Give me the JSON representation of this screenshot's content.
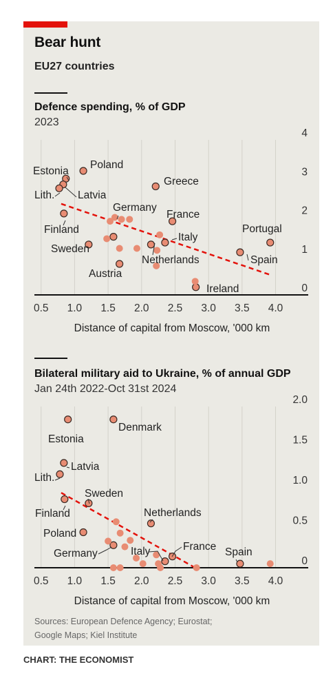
{
  "header": {
    "title": "Bear hunt",
    "subtitle": "EU27 countries"
  },
  "charts": [
    {
      "title": "Defence spending, % of GDP",
      "subtitle": "2023",
      "xlabel": "Distance of capital from Moscow, '000 km"
    },
    {
      "title": "Bilateral military aid to Ukraine, % of annual GDP",
      "subtitle": "Jan 24th 2022-Oct 31st 2024",
      "xlabel": "Distance of capital from Moscow, '000 km"
    }
  ],
  "footer": {
    "sources_line1": "Sources: European Defence Agency; Eurostat;",
    "sources_line2": "Google Maps; Kiel Institute",
    "credit": "CHART: THE ECONOMIST"
  },
  "colors": {
    "background": "#ebeae4",
    "marker_fill": "#e88c73",
    "marker_stroke": "#3a2a24",
    "trend": "#e3120b",
    "brand": "#e3120b"
  },
  "chart_data": [
    {
      "type": "scatter",
      "title": "Defence spending, % of GDP",
      "subtitle": "2023",
      "xlabel": "Distance of capital from Moscow, '000 km",
      "ylabel": "",
      "xlim": [
        0.4,
        4.2
      ],
      "ylim": [
        0,
        4
      ],
      "x_ticks": [
        "0.5",
        "1.0",
        "1.5",
        "2.0",
        "2.5",
        "3.0",
        "3.5",
        "4.0"
      ],
      "y_ticks": [
        "0",
        "1",
        "2",
        "3",
        "4"
      ],
      "grid": "vertical",
      "trendline": [
        [
          0.8,
          2.35
        ],
        [
          3.95,
          0.5
        ]
      ],
      "points": [
        {
          "label": "Estonia",
          "x": 0.87,
          "y": 3.0,
          "outlined": true
        },
        {
          "label": "Latvia",
          "x": 0.83,
          "y": 2.85,
          "outlined": true
        },
        {
          "label": "Lith.",
          "x": 0.77,
          "y": 2.75,
          "outlined": true
        },
        {
          "label": "Poland",
          "x": 1.13,
          "y": 3.2,
          "outlined": true
        },
        {
          "label": "Finland",
          "x": 0.84,
          "y": 2.1,
          "outlined": true
        },
        {
          "label": "Sweden",
          "x": 1.21,
          "y": 1.3,
          "outlined": true
        },
        {
          "label": "Germany",
          "x": 1.58,
          "y": 1.5,
          "outlined": true
        },
        {
          "label": "Greece",
          "x": 2.21,
          "y": 2.8,
          "outlined": true
        },
        {
          "label": "France",
          "x": 2.46,
          "y": 1.9,
          "outlined": true
        },
        {
          "label": "Italy",
          "x": 2.35,
          "y": 1.35,
          "outlined": true
        },
        {
          "label": "Netherlands",
          "x": 2.14,
          "y": 1.3,
          "outlined": true
        },
        {
          "label": "Austria",
          "x": 1.67,
          "y": 0.8,
          "outlined": true
        },
        {
          "label": "Portugal",
          "x": 3.92,
          "y": 1.35,
          "outlined": true
        },
        {
          "label": "Spain",
          "x": 3.47,
          "y": 1.1,
          "outlined": true
        },
        {
          "label": "Ireland",
          "x": 2.81,
          "y": 0.2,
          "outlined": true
        },
        {
          "label": "",
          "x": 1.48,
          "y": 1.45,
          "outlined": false
        },
        {
          "label": "",
          "x": 1.53,
          "y": 1.9,
          "outlined": false
        },
        {
          "label": "",
          "x": 1.6,
          "y": 2.0,
          "outlined": false
        },
        {
          "label": "",
          "x": 1.7,
          "y": 1.95,
          "outlined": false
        },
        {
          "label": "",
          "x": 1.82,
          "y": 1.95,
          "outlined": false
        },
        {
          "label": "",
          "x": 1.67,
          "y": 1.2,
          "outlined": false
        },
        {
          "label": "",
          "x": 1.93,
          "y": 1.2,
          "outlined": false
        },
        {
          "label": "",
          "x": 2.27,
          "y": 1.55,
          "outlined": false
        },
        {
          "label": "",
          "x": 2.23,
          "y": 1.15,
          "outlined": false
        },
        {
          "label": "",
          "x": 2.22,
          "y": 0.75,
          "outlined": false
        },
        {
          "label": "",
          "x": 2.8,
          "y": 0.35,
          "outlined": false
        }
      ]
    },
    {
      "type": "scatter",
      "title": "Bilateral military aid to Ukraine, % of annual GDP",
      "subtitle": "Jan 24th 2022-Oct 31st 2024",
      "xlabel": "Distance of capital from Moscow, '000 km",
      "ylabel": "",
      "xlim": [
        0.4,
        4.2
      ],
      "ylim": [
        0,
        2.0
      ],
      "x_ticks": [
        "0.5",
        "1.0",
        "1.5",
        "2.0",
        "2.5",
        "3.0",
        "3.5",
        "4.0"
      ],
      "y_ticks": [
        "0",
        "0.5",
        "1.0",
        "1.5",
        "2.0"
      ],
      "grid": "vertical",
      "trendline": [
        [
          0.8,
          0.93
        ],
        [
          2.8,
          0.0
        ]
      ],
      "points": [
        {
          "label": "Estonia",
          "x": 0.9,
          "y": 1.84,
          "outlined": true
        },
        {
          "label": "Denmark",
          "x": 1.58,
          "y": 1.84,
          "outlined": true
        },
        {
          "label": "Latvia",
          "x": 0.84,
          "y": 1.3,
          "outlined": true
        },
        {
          "label": "Lith.",
          "x": 0.78,
          "y": 1.16,
          "outlined": true
        },
        {
          "label": "Sweden",
          "x": 1.21,
          "y": 0.8,
          "outlined": true
        },
        {
          "label": "Finland",
          "x": 0.85,
          "y": 0.85,
          "outlined": true
        },
        {
          "label": "Netherlands",
          "x": 2.14,
          "y": 0.55,
          "outlined": true
        },
        {
          "label": "Poland",
          "x": 1.13,
          "y": 0.44,
          "outlined": true
        },
        {
          "label": "Germany",
          "x": 1.58,
          "y": 0.28,
          "outlined": true
        },
        {
          "label": "Italy",
          "x": 2.35,
          "y": 0.08,
          "outlined": true
        },
        {
          "label": "France",
          "x": 2.46,
          "y": 0.14,
          "outlined": true
        },
        {
          "label": "Spain",
          "x": 3.47,
          "y": 0.05,
          "outlined": true
        },
        {
          "label": "",
          "x": 1.62,
          "y": 0.57,
          "outlined": false
        },
        {
          "label": "",
          "x": 1.68,
          "y": 0.43,
          "outlined": false
        },
        {
          "label": "",
          "x": 1.5,
          "y": 0.33,
          "outlined": false
        },
        {
          "label": "",
          "x": 1.75,
          "y": 0.26,
          "outlined": false
        },
        {
          "label": "",
          "x": 1.83,
          "y": 0.34,
          "outlined": false
        },
        {
          "label": "",
          "x": 1.92,
          "y": 0.12,
          "outlined": false
        },
        {
          "label": "",
          "x": 2.22,
          "y": 0.16,
          "outlined": false
        },
        {
          "label": "",
          "x": 2.25,
          "y": 0.05,
          "outlined": false
        },
        {
          "label": "",
          "x": 2.02,
          "y": 0.05,
          "outlined": false
        },
        {
          "label": "",
          "x": 1.58,
          "y": 0.0,
          "outlined": false
        },
        {
          "label": "",
          "x": 1.68,
          "y": 0.0,
          "outlined": false
        },
        {
          "label": "",
          "x": 2.28,
          "y": 0.0,
          "outlined": false
        },
        {
          "label": "",
          "x": 2.82,
          "y": 0.0,
          "outlined": false
        },
        {
          "label": "",
          "x": 3.92,
          "y": 0.05,
          "outlined": false
        }
      ]
    }
  ]
}
